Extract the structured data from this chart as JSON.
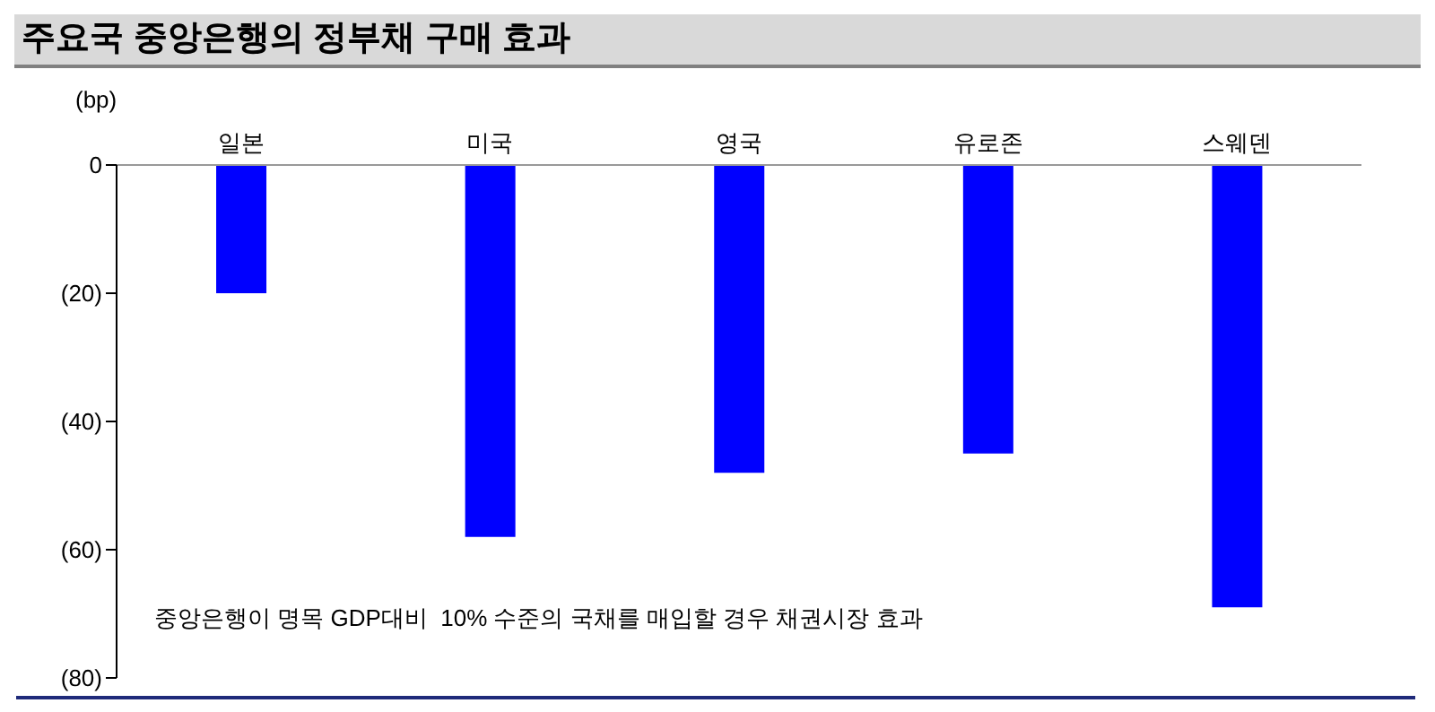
{
  "chart_data": {
    "type": "bar",
    "title": "주요국 중앙은행의 정부채 구매 효과",
    "ylabel": "(bp)",
    "categories": [
      "일본",
      "미국",
      "영국",
      "유로존",
      "스웨덴"
    ],
    "values": [
      -20,
      -58,
      -48,
      -45,
      -69
    ],
    "color": "#0000ff",
    "ylim": [
      -80,
      0
    ],
    "yticks": [
      {
        "value": -80,
        "label": "(80)"
      },
      {
        "value": -60,
        "label": "(60)"
      },
      {
        "value": -40,
        "label": "(40)"
      },
      {
        "value": -20,
        "label": "(20)"
      },
      0
    ],
    "grid": false,
    "legend": false,
    "annotations": [
      "중앙은행이 명목 GDP대비  10% 수준의 국채를 매입할 경우 채권시장 효과"
    ]
  }
}
